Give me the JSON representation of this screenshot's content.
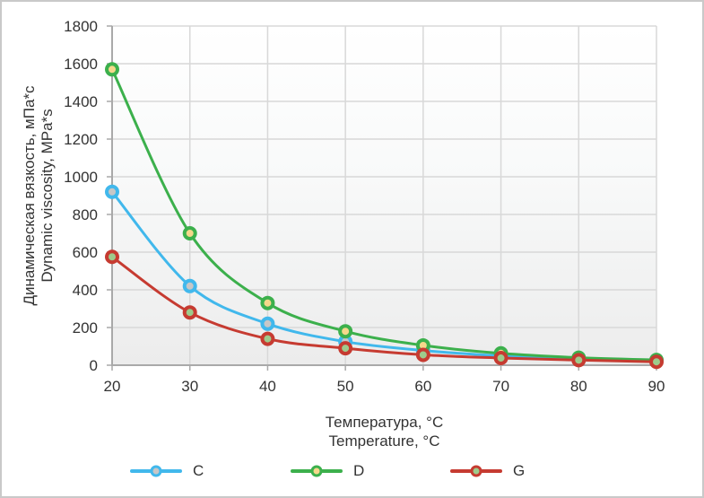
{
  "chart_data": {
    "type": "line",
    "x": [
      20,
      30,
      40,
      50,
      60,
      70,
      80,
      90
    ],
    "series": [
      {
        "name": "C",
        "line_color": "#41b8ec",
        "marker_fill": "#c7c7c7",
        "values": [
          920,
          420,
          220,
          125,
          78,
          50,
          34,
          24
        ]
      },
      {
        "name": "D",
        "line_color": "#3cb04c",
        "marker_fill": "#f5d88b",
        "values": [
          1570,
          700,
          330,
          180,
          105,
          63,
          40,
          28
        ]
      },
      {
        "name": "G",
        "line_color": "#c63b31",
        "marker_fill": "#9ecb8c",
        "values": [
          575,
          280,
          140,
          90,
          55,
          38,
          27,
          18
        ]
      }
    ],
    "xlabel_ru": "Температура, °C",
    "xlabel_en": "Temperature, °C",
    "ylabel_ru": "Динамическая вязкость, мПа*с",
    "ylabel_en": "Dynamic viscosity, MPa*s",
    "xlim": [
      20,
      90
    ],
    "ylim": [
      0,
      1800
    ],
    "x_tick_step": 10,
    "y_tick_step": 200,
    "grid": true,
    "legend_position": "bottom",
    "plot_bg_gradient_top": "#ffffff",
    "plot_bg_gradient_bottom": "#ececec",
    "grid_color": "#d8d8d8",
    "axis_color": "#a9a9a9",
    "text_color": "#333333"
  }
}
